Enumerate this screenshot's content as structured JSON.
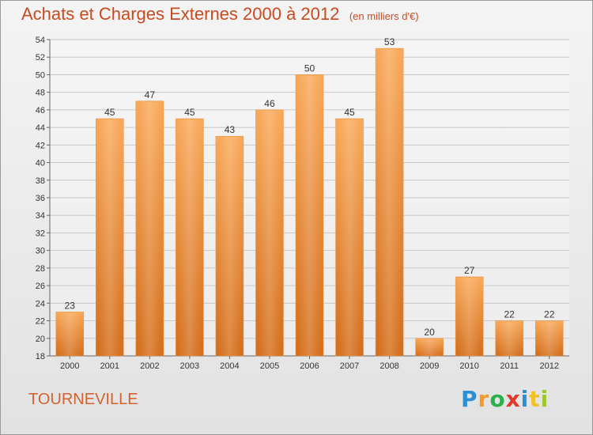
{
  "title": "Achats et Charges Externes 2000 à 2012",
  "subtitle": "(en milliers d'€)",
  "place": "TOURNEVILLE",
  "logo": {
    "letters": [
      "P",
      "r",
      "o",
      "x",
      "i",
      "t",
      "i"
    ],
    "colors": [
      "#2b8fd6",
      "#f29a2a",
      "#2bb04a",
      "#e23a2a",
      "#2b8fd6",
      "#f2c12a",
      "#9cc82a"
    ]
  },
  "colors": {
    "bar_top": "#f9a95a",
    "bar_bottom": "#d46e1c",
    "title": "#c84a1e",
    "place": "#d4622e"
  },
  "chart_data": {
    "type": "bar",
    "categories": [
      "2000",
      "2001",
      "2002",
      "2003",
      "2004",
      "2005",
      "2006",
      "2007",
      "2008",
      "2009",
      "2010",
      "2011",
      "2012"
    ],
    "values": [
      23,
      45,
      47,
      45,
      43,
      46,
      50,
      45,
      53,
      20,
      27,
      22,
      22
    ],
    "ylim": [
      18,
      54
    ],
    "yticks": [
      18,
      20,
      22,
      24,
      26,
      28,
      30,
      32,
      34,
      36,
      38,
      40,
      42,
      44,
      46,
      48,
      50,
      52,
      54
    ],
    "grid": true
  }
}
